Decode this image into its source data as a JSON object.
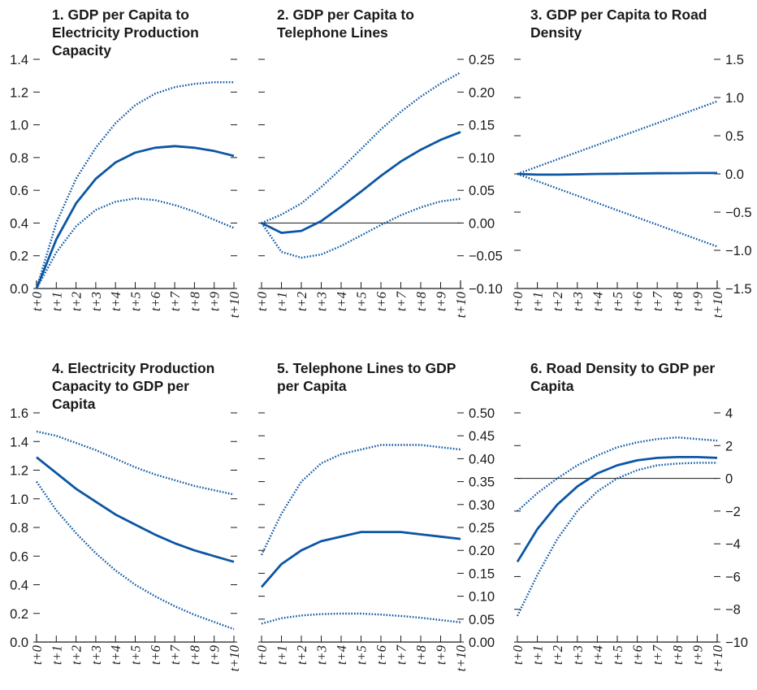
{
  "colors": {
    "series": "#0b56a4",
    "axis": "#1a1a1a",
    "zero_line": "#333333"
  },
  "chart_data": [
    {
      "type": "line",
      "title_lines": [
        "1. GDP per Capita to",
        "Electricity Production",
        "Capacity"
      ],
      "x": [
        "t+0",
        "t+1",
        "t+2",
        "t+3",
        "t+4",
        "t+5",
        "t+6",
        "t+7",
        "t+8",
        "t+9",
        "t+10"
      ],
      "y_axis_side": "left",
      "ylim": [
        0,
        1.4
      ],
      "yticks": [
        "0.0",
        "0.2",
        "0.4",
        "0.6",
        "0.8",
        "1.0",
        "1.2",
        "1.4"
      ],
      "zero_line": false,
      "series": [
        {
          "style": "solid",
          "values": [
            0.0,
            0.3,
            0.52,
            0.67,
            0.77,
            0.83,
            0.86,
            0.87,
            0.86,
            0.84,
            0.81
          ]
        },
        {
          "style": "dotted",
          "values": [
            0.0,
            0.4,
            0.67,
            0.86,
            1.01,
            1.12,
            1.19,
            1.23,
            1.25,
            1.26,
            1.26
          ]
        },
        {
          "style": "dotted",
          "values": [
            0.0,
            0.22,
            0.38,
            0.48,
            0.53,
            0.55,
            0.54,
            0.51,
            0.47,
            0.42,
            0.37
          ]
        }
      ]
    },
    {
      "type": "line",
      "title_lines": [
        "2. GDP per Capita to",
        "Telephone Lines"
      ],
      "x": [
        "t+0",
        "t+1",
        "t+2",
        "t+3",
        "t+4",
        "t+5",
        "t+6",
        "t+7",
        "t+8",
        "t+9",
        "t+10"
      ],
      "y_axis_side": "right",
      "ylim": [
        -0.1,
        0.25
      ],
      "yticks": [
        "−0.10",
        "−0.05",
        "0.00",
        "0.05",
        "0.10",
        "0.15",
        "0.20",
        "0.25"
      ],
      "zero_line": true,
      "series": [
        {
          "style": "solid",
          "values": [
            0.0,
            -0.015,
            -0.012,
            0.003,
            0.025,
            0.048,
            0.072,
            0.094,
            0.112,
            0.127,
            0.139
          ]
        },
        {
          "style": "dotted",
          "values": [
            0.0,
            0.013,
            0.03,
            0.055,
            0.083,
            0.113,
            0.143,
            0.17,
            0.193,
            0.213,
            0.23
          ]
        },
        {
          "style": "dotted",
          "values": [
            0.0,
            -0.044,
            -0.053,
            -0.048,
            -0.035,
            -0.019,
            -0.003,
            0.012,
            0.024,
            0.033,
            0.037
          ]
        }
      ]
    },
    {
      "type": "line",
      "title_lines": [
        "3. GDP per Capita to Road",
        "Density"
      ],
      "x": [
        "t+0",
        "t+1",
        "t+2",
        "t+3",
        "t+4",
        "t+5",
        "t+6",
        "t+7",
        "t+8",
        "t+9",
        "t+10"
      ],
      "y_axis_side": "right",
      "ylim": [
        -1.5,
        1.5
      ],
      "yticks": [
        "−1.5",
        "−1.0",
        "−0.5",
        "0.0",
        "0.5",
        "1.0",
        "1.5"
      ],
      "zero_line": false,
      "series": [
        {
          "style": "solid",
          "values": [
            0.0,
            -0.01,
            -0.01,
            -0.005,
            0.0,
            0.002,
            0.005,
            0.008,
            0.01,
            0.012,
            0.012
          ]
        },
        {
          "style": "dotted",
          "values": [
            0.0,
            0.095,
            0.19,
            0.285,
            0.38,
            0.475,
            0.57,
            0.665,
            0.76,
            0.855,
            0.95
          ]
        },
        {
          "style": "dotted",
          "values": [
            0.0,
            -0.095,
            -0.19,
            -0.285,
            -0.38,
            -0.475,
            -0.57,
            -0.665,
            -0.76,
            -0.855,
            -0.95
          ]
        }
      ]
    },
    {
      "type": "line",
      "title_lines": [
        "4. Electricity Production",
        "Capacity to GDP per",
        "Capita"
      ],
      "x": [
        "t+0",
        "t+1",
        "t+2",
        "t+3",
        "t+4",
        "t+5",
        "t+6",
        "t+7",
        "t+8",
        "t+9",
        "t+10"
      ],
      "y_axis_side": "left",
      "ylim": [
        0,
        1.6
      ],
      "yticks": [
        "0.0",
        "0.2",
        "0.4",
        "0.6",
        "0.8",
        "1.0",
        "1.2",
        "1.4",
        "1.6"
      ],
      "zero_line": false,
      "series": [
        {
          "style": "solid",
          "values": [
            1.29,
            1.18,
            1.07,
            0.98,
            0.89,
            0.82,
            0.75,
            0.69,
            0.64,
            0.6,
            0.56
          ]
        },
        {
          "style": "dotted",
          "values": [
            1.47,
            1.44,
            1.39,
            1.34,
            1.28,
            1.22,
            1.17,
            1.13,
            1.09,
            1.06,
            1.03
          ]
        },
        {
          "style": "dotted",
          "values": [
            1.12,
            0.92,
            0.76,
            0.62,
            0.5,
            0.4,
            0.32,
            0.25,
            0.19,
            0.14,
            0.09
          ]
        }
      ]
    },
    {
      "type": "line",
      "title_lines": [
        "5. Telephone Lines to GDP",
        "per Capita"
      ],
      "x": [
        "t+0",
        "t+1",
        "t+2",
        "t+3",
        "t+4",
        "t+5",
        "t+6",
        "t+7",
        "t+8",
        "t+9",
        "t+10"
      ],
      "y_axis_side": "right",
      "ylim": [
        0,
        0.5
      ],
      "yticks": [
        "0.00",
        "0.05",
        "0.10",
        "0.15",
        "0.20",
        "0.25",
        "0.30",
        "0.35",
        "0.40",
        "0.45",
        "0.50"
      ],
      "zero_line": false,
      "series": [
        {
          "style": "solid",
          "values": [
            0.12,
            0.17,
            0.2,
            0.22,
            0.23,
            0.24,
            0.24,
            0.24,
            0.235,
            0.23,
            0.225
          ]
        },
        {
          "style": "dotted",
          "values": [
            0.19,
            0.28,
            0.35,
            0.39,
            0.41,
            0.42,
            0.43,
            0.43,
            0.43,
            0.425,
            0.42
          ]
        },
        {
          "style": "dotted",
          "values": [
            0.04,
            0.052,
            0.058,
            0.061,
            0.062,
            0.062,
            0.06,
            0.057,
            0.053,
            0.048,
            0.043
          ]
        }
      ]
    },
    {
      "type": "line",
      "title_lines": [
        "6. Road Density to GDP per",
        "Capita"
      ],
      "x": [
        "t+0",
        "t+1",
        "t+2",
        "t+3",
        "t+4",
        "t+5",
        "t+6",
        "t+7",
        "t+8",
        "t+9",
        "t+10"
      ],
      "y_axis_side": "right",
      "ylim": [
        -10,
        4
      ],
      "yticks": [
        "−10",
        "−8",
        "−6",
        "−4",
        "−2",
        "0",
        "2",
        "4"
      ],
      "zero_line": true,
      "series": [
        {
          "style": "solid",
          "values": [
            -5.1,
            -3.1,
            -1.6,
            -0.5,
            0.3,
            0.8,
            1.1,
            1.25,
            1.3,
            1.3,
            1.25
          ]
        },
        {
          "style": "dotted",
          "values": [
            -2.0,
            -0.9,
            0.0,
            0.8,
            1.4,
            1.9,
            2.2,
            2.4,
            2.5,
            2.4,
            2.3
          ]
        },
        {
          "style": "dotted",
          "values": [
            -8.4,
            -5.9,
            -3.7,
            -2.0,
            -0.8,
            0.0,
            0.5,
            0.8,
            0.9,
            0.95,
            0.95
          ]
        }
      ]
    }
  ]
}
